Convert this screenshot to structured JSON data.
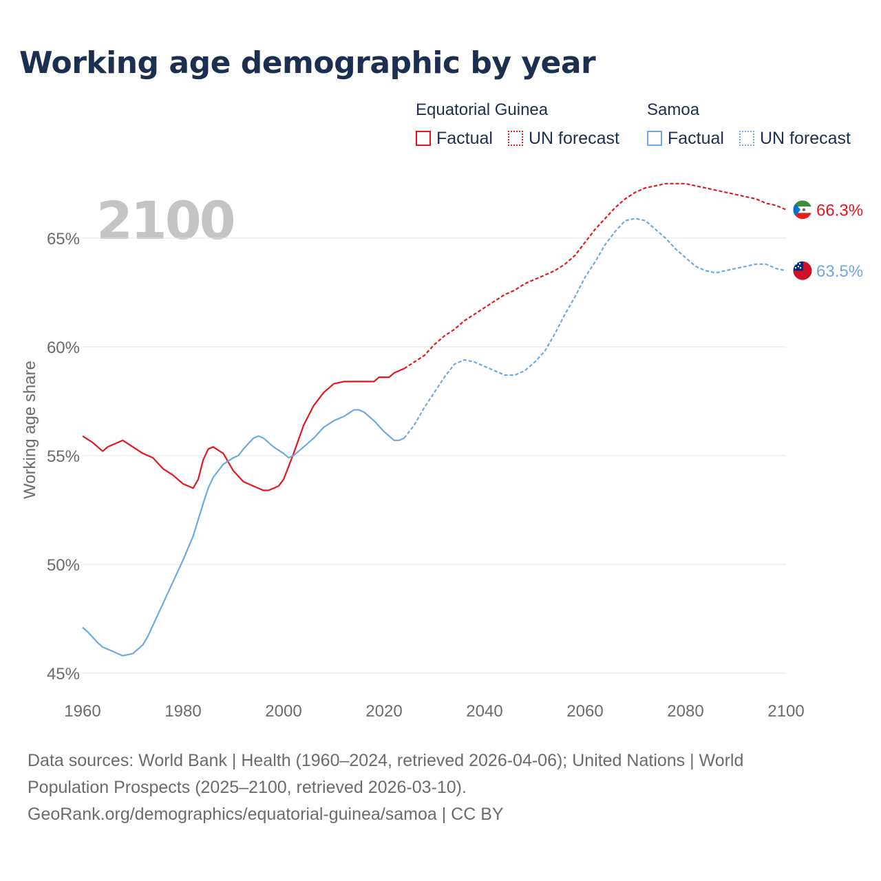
{
  "title": "Working age demographic by year",
  "highlight_year": "2100",
  "legend": {
    "groups": [
      {
        "name": "Equatorial Guinea",
        "color": "#e8141c",
        "items": [
          {
            "label": "Factual",
            "style": "solid"
          },
          {
            "label": "UN forecast",
            "style": "dotted"
          }
        ]
      },
      {
        "name": "Samoa",
        "color": "#6aa9e3",
        "items": [
          {
            "label": "Factual",
            "style": "solid"
          },
          {
            "label": "UN forecast",
            "style": "dotted"
          }
        ]
      }
    ]
  },
  "source": {
    "line1": "Data sources: World Bank | Health (1960–2024, retrieved 2026-04-06); United Nations | World Population Prospects (2025–2100, retrieved 2026-03-10).",
    "line2": "GeoRank.org/demographics/equatorial-guinea/samoa | CC BY"
  },
  "chart_data": {
    "type": "line",
    "title": "Working age demographic by year",
    "xlabel": "",
    "ylabel": "Working age share",
    "xlim": [
      1960,
      2100
    ],
    "ylim": [
      45,
      68
    ],
    "x_ticks": [
      1960,
      1980,
      2000,
      2020,
      2040,
      2060,
      2080,
      2100
    ],
    "x_tick_labels": [
      "1960",
      "1980",
      "2000",
      "2020",
      "2040",
      "2060",
      "2080",
      "2100"
    ],
    "y_ticks": [
      45,
      50,
      55,
      60,
      65
    ],
    "y_tick_labels": [
      "45%",
      "50%",
      "55%",
      "60%",
      "65%"
    ],
    "grid": true,
    "forecast_start": 2024,
    "series": [
      {
        "name": "Equatorial Guinea",
        "color": "#e8141c",
        "end_label": "66.3%",
        "flag": "equatorial-guinea",
        "points": [
          [
            1960,
            55.9
          ],
          [
            1962,
            55.6
          ],
          [
            1964,
            55.2
          ],
          [
            1965,
            55.4
          ],
          [
            1968,
            55.7
          ],
          [
            1970,
            55.4
          ],
          [
            1972,
            55.1
          ],
          [
            1974,
            54.9
          ],
          [
            1976,
            54.4
          ],
          [
            1978,
            54.1
          ],
          [
            1980,
            53.7
          ],
          [
            1982,
            53.5
          ],
          [
            1983,
            53.9
          ],
          [
            1984,
            54.8
          ],
          [
            1985,
            55.3
          ],
          [
            1986,
            55.4
          ],
          [
            1988,
            55.1
          ],
          [
            1990,
            54.3
          ],
          [
            1992,
            53.8
          ],
          [
            1994,
            53.6
          ],
          [
            1996,
            53.4
          ],
          [
            1997,
            53.4
          ],
          [
            1999,
            53.6
          ],
          [
            2000,
            53.9
          ],
          [
            2002,
            55.1
          ],
          [
            2004,
            56.4
          ],
          [
            2006,
            57.3
          ],
          [
            2008,
            57.9
          ],
          [
            2010,
            58.3
          ],
          [
            2012,
            58.4
          ],
          [
            2015,
            58.4
          ],
          [
            2018,
            58.4
          ],
          [
            2019,
            58.6
          ],
          [
            2021,
            58.6
          ],
          [
            2022,
            58.8
          ],
          [
            2024,
            59.0
          ],
          [
            2026,
            59.3
          ],
          [
            2028,
            59.6
          ],
          [
            2030,
            60.1
          ],
          [
            2032,
            60.5
          ],
          [
            2034,
            60.8
          ],
          [
            2036,
            61.2
          ],
          [
            2038,
            61.5
          ],
          [
            2040,
            61.8
          ],
          [
            2042,
            62.1
          ],
          [
            2044,
            62.4
          ],
          [
            2046,
            62.6
          ],
          [
            2048,
            62.9
          ],
          [
            2050,
            63.1
          ],
          [
            2052,
            63.3
          ],
          [
            2054,
            63.5
          ],
          [
            2056,
            63.8
          ],
          [
            2058,
            64.2
          ],
          [
            2060,
            64.8
          ],
          [
            2062,
            65.4
          ],
          [
            2064,
            65.9
          ],
          [
            2066,
            66.4
          ],
          [
            2068,
            66.8
          ],
          [
            2070,
            67.1
          ],
          [
            2072,
            67.3
          ],
          [
            2074,
            67.4
          ],
          [
            2076,
            67.5
          ],
          [
            2080,
            67.5
          ],
          [
            2082,
            67.4
          ],
          [
            2084,
            67.3
          ],
          [
            2086,
            67.2
          ],
          [
            2088,
            67.1
          ],
          [
            2090,
            67.0
          ],
          [
            2092,
            66.9
          ],
          [
            2094,
            66.8
          ],
          [
            2096,
            66.6
          ],
          [
            2098,
            66.5
          ],
          [
            2100,
            66.3
          ]
        ]
      },
      {
        "name": "Samoa",
        "color": "#6aa9e3",
        "end_label": "63.5%",
        "flag": "samoa",
        "points": [
          [
            1960,
            47.1
          ],
          [
            1961,
            46.9
          ],
          [
            1963,
            46.4
          ],
          [
            1964,
            46.2
          ],
          [
            1966,
            46.0
          ],
          [
            1967,
            45.9
          ],
          [
            1968,
            45.8
          ],
          [
            1970,
            45.9
          ],
          [
            1972,
            46.3
          ],
          [
            1973,
            46.7
          ],
          [
            1974,
            47.2
          ],
          [
            1976,
            48.2
          ],
          [
            1978,
            49.2
          ],
          [
            1980,
            50.2
          ],
          [
            1982,
            51.3
          ],
          [
            1984,
            52.8
          ],
          [
            1985,
            53.5
          ],
          [
            1986,
            54.0
          ],
          [
            1988,
            54.6
          ],
          [
            1990,
            54.9
          ],
          [
            1991,
            55.0
          ],
          [
            1992,
            55.3
          ],
          [
            1994,
            55.8
          ],
          [
            1995,
            55.9
          ],
          [
            1996,
            55.8
          ],
          [
            1998,
            55.4
          ],
          [
            2000,
            55.1
          ],
          [
            2001,
            54.9
          ],
          [
            2002,
            55.0
          ],
          [
            2004,
            55.4
          ],
          [
            2006,
            55.8
          ],
          [
            2008,
            56.3
          ],
          [
            2010,
            56.6
          ],
          [
            2012,
            56.8
          ],
          [
            2014,
            57.1
          ],
          [
            2015,
            57.1
          ],
          [
            2016,
            57.0
          ],
          [
            2018,
            56.6
          ],
          [
            2020,
            56.1
          ],
          [
            2022,
            55.7
          ],
          [
            2023,
            55.7
          ],
          [
            2024,
            55.8
          ],
          [
            2026,
            56.4
          ],
          [
            2028,
            57.2
          ],
          [
            2030,
            57.9
          ],
          [
            2032,
            58.6
          ],
          [
            2034,
            59.2
          ],
          [
            2036,
            59.4
          ],
          [
            2038,
            59.3
          ],
          [
            2040,
            59.1
          ],
          [
            2042,
            58.9
          ],
          [
            2044,
            58.7
          ],
          [
            2046,
            58.7
          ],
          [
            2048,
            58.9
          ],
          [
            2050,
            59.3
          ],
          [
            2052,
            59.8
          ],
          [
            2054,
            60.6
          ],
          [
            2056,
            61.5
          ],
          [
            2058,
            62.3
          ],
          [
            2060,
            63.2
          ],
          [
            2062,
            63.9
          ],
          [
            2064,
            64.7
          ],
          [
            2066,
            65.3
          ],
          [
            2068,
            65.8
          ],
          [
            2070,
            65.9
          ],
          [
            2072,
            65.8
          ],
          [
            2074,
            65.4
          ],
          [
            2076,
            65.0
          ],
          [
            2078,
            64.5
          ],
          [
            2080,
            64.1
          ],
          [
            2082,
            63.7
          ],
          [
            2084,
            63.5
          ],
          [
            2086,
            63.4
          ],
          [
            2088,
            63.5
          ],
          [
            2090,
            63.6
          ],
          [
            2092,
            63.7
          ],
          [
            2094,
            63.8
          ],
          [
            2096,
            63.8
          ],
          [
            2098,
            63.6
          ],
          [
            2100,
            63.5
          ]
        ]
      }
    ]
  }
}
